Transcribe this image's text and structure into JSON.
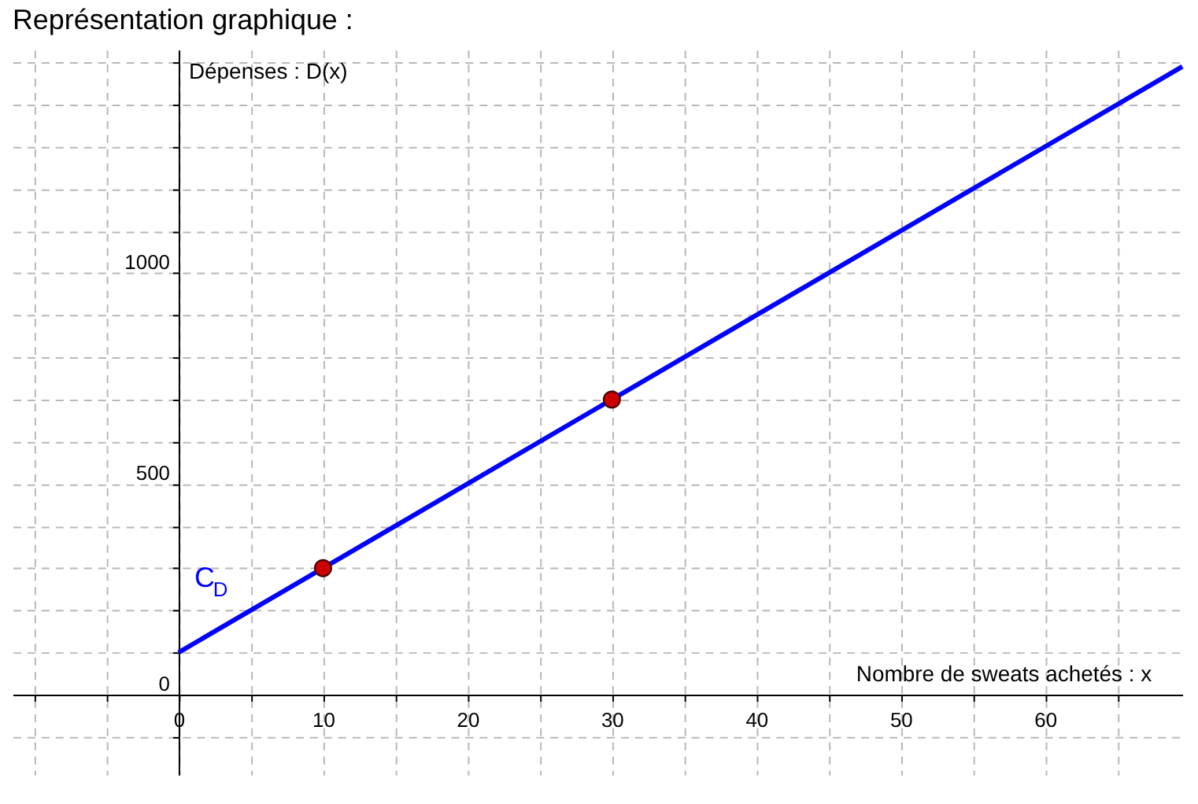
{
  "chart_data": {
    "type": "line",
    "title": "Représentation graphique :",
    "xlabel": "Nombre de sweats achetés : x",
    "ylabel": "Dépenses : D(x)",
    "xlim": [
      -11.5,
      69.5
    ],
    "ylim": [
      -190,
      1530
    ],
    "xticks": [
      {
        "value": -10,
        "label": null
      },
      {
        "value": -5,
        "label": null
      },
      0,
      {
        "value": 5,
        "label": null
      },
      10,
      {
        "value": 15,
        "label": null
      },
      20,
      {
        "value": 25,
        "label": null
      },
      30,
      {
        "value": 35,
        "label": null
      },
      40,
      {
        "value": 45,
        "label": null
      },
      50,
      {
        "value": 55,
        "label": null
      },
      60,
      {
        "value": 65,
        "label": null
      }
    ],
    "yticks": [
      {
        "value": -100,
        "label": null
      },
      0,
      {
        "value": 100,
        "label": null
      },
      {
        "value": 200,
        "label": null
      },
      {
        "value": 300,
        "label": null
      },
      {
        "value": 400,
        "label": null
      },
      500,
      {
        "value": 600,
        "label": null
      },
      {
        "value": 700,
        "label": null
      },
      {
        "value": 800,
        "label": null
      },
      {
        "value": 900,
        "label": null
      },
      1000,
      {
        "value": 1100,
        "label": null
      },
      {
        "value": 1200,
        "label": null
      },
      {
        "value": 1300,
        "label": null
      },
      {
        "value": 1400,
        "label": null
      },
      {
        "value": 1500,
        "label": null
      }
    ],
    "grid": true,
    "series": [
      {
        "name": "C$_{D}$",
        "color": "#0000ff",
        "x": [
          0,
          69.5
        ],
        "values": [
          100,
          1490
        ],
        "marker": "none",
        "line_style": "solid"
      },
      {
        "type": "scatter",
        "color": "#cc0000",
        "x": [
          10,
          30
        ],
        "values": [
          300,
          700
        ],
        "marker": "circle"
      }
    ]
  }
}
